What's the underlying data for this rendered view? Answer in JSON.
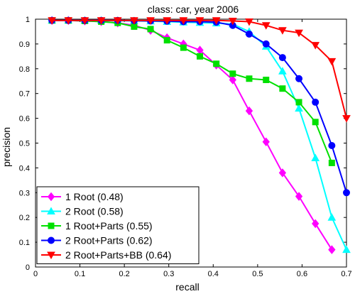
{
  "chart_data": {
    "type": "line",
    "title": "class: car, year 2006",
    "xlabel": "recall",
    "ylabel": "precision",
    "xlim": [
      0,
      0.7
    ],
    "ylim": [
      0,
      1
    ],
    "xticks": [
      "0",
      "0.1",
      "0.2",
      "0.3",
      "0.4",
      "0.5",
      "0.6",
      "0.7"
    ],
    "yticks": [
      "0",
      "0.1",
      "0.2",
      "0.3",
      "0.4",
      "0.5",
      "0.6",
      "0.7",
      "0.8",
      "0.9",
      "1"
    ],
    "grid": false,
    "legend_position": "bottom-left",
    "series": [
      {
        "name": "1 Root (0.48)",
        "color": "#ff00ff",
        "marker": "diamond",
        "x": [
          0.037,
          0.074,
          0.111,
          0.148,
          0.185,
          0.222,
          0.259,
          0.296,
          0.333,
          0.37,
          0.407,
          0.444,
          0.481,
          0.519,
          0.556,
          0.593,
          0.63,
          0.667
        ],
        "y": [
          0.995,
          0.995,
          0.993,
          0.99,
          0.985,
          0.975,
          0.955,
          0.925,
          0.9,
          0.875,
          0.815,
          0.755,
          0.63,
          0.505,
          0.38,
          0.285,
          0.175,
          0.07
        ]
      },
      {
        "name": "2 Root (0.58)",
        "color": "#00ffff",
        "marker": "triangle-up",
        "x": [
          0.037,
          0.074,
          0.111,
          0.148,
          0.185,
          0.222,
          0.259,
          0.296,
          0.333,
          0.37,
          0.407,
          0.444,
          0.481,
          0.519,
          0.556,
          0.593,
          0.63,
          0.667,
          0.7
        ],
        "y": [
          0.995,
          0.995,
          0.995,
          0.995,
          0.994,
          0.993,
          0.992,
          0.99,
          0.988,
          0.986,
          0.984,
          0.98,
          0.95,
          0.89,
          0.79,
          0.64,
          0.44,
          0.2,
          0.07
        ]
      },
      {
        "name": "1 Root+Parts (0.55)",
        "color": "#00e000",
        "marker": "square",
        "x": [
          0.037,
          0.074,
          0.111,
          0.148,
          0.185,
          0.222,
          0.259,
          0.296,
          0.333,
          0.37,
          0.407,
          0.444,
          0.481,
          0.519,
          0.556,
          0.593,
          0.63,
          0.667
        ],
        "y": [
          0.995,
          0.995,
          0.993,
          0.99,
          0.985,
          0.97,
          0.96,
          0.915,
          0.885,
          0.85,
          0.82,
          0.78,
          0.76,
          0.755,
          0.72,
          0.665,
          0.585,
          0.42
        ]
      },
      {
        "name": "2 Root+Parts (0.62)",
        "color": "#0000ff",
        "marker": "circle",
        "x": [
          0.037,
          0.074,
          0.111,
          0.148,
          0.185,
          0.222,
          0.259,
          0.296,
          0.333,
          0.37,
          0.407,
          0.444,
          0.481,
          0.519,
          0.556,
          0.593,
          0.63,
          0.667,
          0.7
        ],
        "y": [
          0.995,
          0.995,
          0.995,
          0.995,
          0.995,
          0.994,
          0.993,
          0.992,
          0.99,
          0.99,
          0.988,
          0.975,
          0.94,
          0.9,
          0.845,
          0.76,
          0.665,
          0.49,
          0.3
        ]
      },
      {
        "name": "2 Root+Parts+BB (0.64)",
        "color": "#ff0000",
        "marker": "triangle-down",
        "x": [
          0.037,
          0.074,
          0.111,
          0.148,
          0.185,
          0.222,
          0.259,
          0.296,
          0.333,
          0.37,
          0.407,
          0.444,
          0.481,
          0.519,
          0.556,
          0.593,
          0.63,
          0.667,
          0.7
        ],
        "y": [
          0.995,
          0.995,
          0.995,
          0.995,
          0.995,
          0.995,
          0.995,
          0.995,
          0.995,
          0.995,
          0.995,
          0.993,
          0.99,
          0.975,
          0.955,
          0.945,
          0.895,
          0.83,
          0.6
        ]
      }
    ]
  }
}
